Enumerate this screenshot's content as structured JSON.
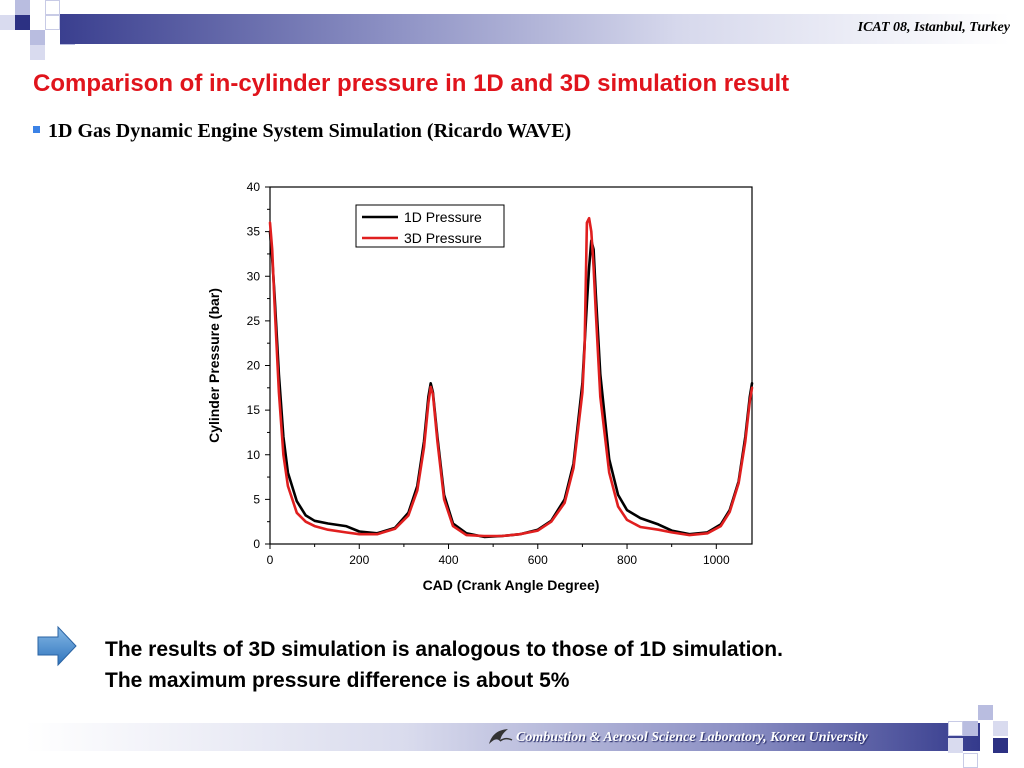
{
  "header": {
    "conference": "ICAT 08, Istanbul, Turkey",
    "colors": {
      "title": "#e0141c",
      "bar_dark": "#3a3f8f",
      "bar_light": "#d6d8ec"
    }
  },
  "slide": {
    "title": "Comparison of in-cylinder pressure in 1D and 3D simulation result",
    "bullet": "1D Gas Dynamic Engine System Simulation (Ricardo WAVE)",
    "conclusion_line1": "The results of 3D simulation is analogous to those of 1D simulation.",
    "conclusion_line2": "The maximum pressure difference is about 5%",
    "arrow_icon": "right-arrow-icon"
  },
  "footer": {
    "lab": "Combustion & Aerosol Science Laboratory, Korea University",
    "logo_icon": "lab-logo-icon"
  },
  "chart_data": {
    "type": "line",
    "xlabel": "CAD (Crank Angle Degree)",
    "ylabel": "Cylinder Pressure (bar)",
    "xlim": [
      0,
      1080
    ],
    "ylim": [
      0,
      40
    ],
    "xticks": [
      0,
      200,
      400,
      600,
      800,
      1000
    ],
    "yticks": [
      0,
      5,
      10,
      15,
      20,
      25,
      30,
      35,
      40
    ],
    "legend_position": "top-right",
    "grid": false,
    "series": [
      {
        "name": "1D Pressure",
        "color": "#000000",
        "x": [
          0,
          5,
          10,
          20,
          30,
          40,
          60,
          80,
          100,
          130,
          170,
          200,
          240,
          280,
          310,
          330,
          345,
          355,
          360,
          365,
          375,
          390,
          410,
          440,
          480,
          520,
          560,
          600,
          630,
          660,
          680,
          700,
          710,
          715,
          720,
          725,
          730,
          740,
          760,
          780,
          800,
          830,
          870,
          900,
          940,
          980,
          1010,
          1030,
          1050,
          1065,
          1075,
          1080
        ],
        "y": [
          35,
          32,
          28,
          19,
          12,
          8,
          4.8,
          3.2,
          2.6,
          2.3,
          2.0,
          1.4,
          1.2,
          1.8,
          3.5,
          6.5,
          11.5,
          16.5,
          18.0,
          17.0,
          12.0,
          5.5,
          2.3,
          1.2,
          0.8,
          0.9,
          1.1,
          1.6,
          2.6,
          5.0,
          9.0,
          18.0,
          27.0,
          31.0,
          34.0,
          33.0,
          28.0,
          19.0,
          9.5,
          5.5,
          3.8,
          2.9,
          2.2,
          1.5,
          1.1,
          1.3,
          2.2,
          3.8,
          7.0,
          12.0,
          16.5,
          18.0
        ]
      },
      {
        "name": "3D Pressure",
        "color": "#e01f1f",
        "x": [
          0,
          5,
          10,
          20,
          30,
          40,
          60,
          80,
          100,
          130,
          170,
          200,
          240,
          280,
          310,
          330,
          345,
          355,
          360,
          365,
          375,
          390,
          410,
          440,
          480,
          520,
          560,
          600,
          630,
          660,
          680,
          700,
          705,
          710,
          715,
          720,
          725,
          730,
          740,
          760,
          780,
          800,
          830,
          870,
          900,
          940,
          980,
          1010,
          1030,
          1050,
          1065,
          1075,
          1080
        ],
        "y": [
          36,
          33,
          27,
          17,
          10,
          6.5,
          3.5,
          2.5,
          2.0,
          1.6,
          1.3,
          1.1,
          1.1,
          1.7,
          3.2,
          6.0,
          10.8,
          15.8,
          17.6,
          16.8,
          11.5,
          5.0,
          2.0,
          1.0,
          0.9,
          0.9,
          1.1,
          1.5,
          2.5,
          4.6,
          8.5,
          17.0,
          22.0,
          36.0,
          36.5,
          35.0,
          31.0,
          26.0,
          16.5,
          8.0,
          4.2,
          2.7,
          1.9,
          1.6,
          1.3,
          1.0,
          1.2,
          2.0,
          3.6,
          6.8,
          11.5,
          16.0,
          17.5
        ]
      }
    ]
  }
}
